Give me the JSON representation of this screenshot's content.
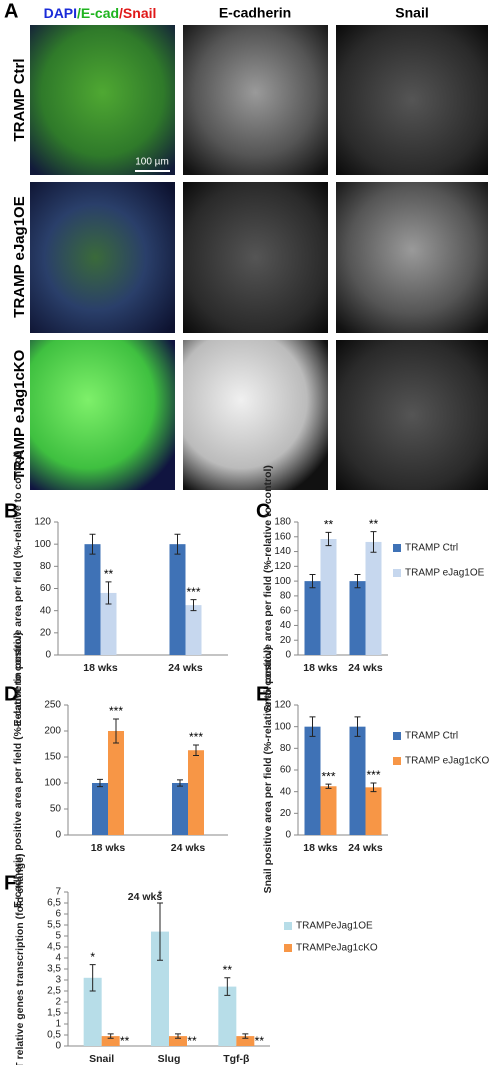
{
  "panel_a": {
    "label": "A",
    "merged_header_parts": [
      "DAPI",
      "/E-cad",
      "/Snail"
    ],
    "column_headers": [
      "E-cadherin",
      "Snail"
    ],
    "row_labels": [
      "TRAMP Ctrl",
      "TRAMP eJag1OE",
      "TRAMP eJag1cKO"
    ],
    "scale_bar": "100 µm"
  },
  "chart_data": [
    {
      "type": "bar",
      "label": "B",
      "y_label": "E-cadherin positive area per field (%-relative to control)",
      "categories": [
        "18 wks",
        "24 wks"
      ],
      "ylim": [
        0,
        120
      ],
      "yticks": [
        0,
        20,
        40,
        60,
        80,
        100,
        120
      ],
      "series": [
        {
          "color": "#3f72b6",
          "values": [
            100,
            100
          ],
          "errors": [
            9,
            9
          ]
        },
        {
          "color": "#c6d7ee",
          "values": [
            56,
            45
          ],
          "errors": [
            10,
            5
          ],
          "stars": [
            "**",
            "***"
          ]
        }
      ]
    },
    {
      "type": "bar",
      "label": "C",
      "y_label": "Snail positive area per field (%-relative to control)",
      "categories": [
        "18 wks",
        "24 wks"
      ],
      "ylim": [
        0,
        180
      ],
      "yticks": [
        0,
        20,
        40,
        60,
        80,
        100,
        120,
        140,
        160,
        180
      ],
      "legend": "right",
      "series": [
        {
          "name": "TRAMP Ctrl",
          "color": "#3f72b6",
          "values": [
            100,
            100
          ],
          "errors": [
            9,
            9
          ]
        },
        {
          "name": "TRAMP eJag1OE",
          "color": "#c6d7ee",
          "values": [
            157,
            153
          ],
          "errors": [
            9,
            14
          ],
          "stars": [
            "**",
            "**"
          ]
        }
      ]
    },
    {
      "type": "bar",
      "label": "D",
      "y_label": "E-cadherin positive area per field (%-relative to control)",
      "categories": [
        "18 wks",
        "24 wks"
      ],
      "ylim": [
        0,
        250
      ],
      "yticks": [
        0,
        50,
        100,
        150,
        200,
        250
      ],
      "series": [
        {
          "color": "#3f72b6",
          "values": [
            100,
            100
          ],
          "errors": [
            7,
            6
          ]
        },
        {
          "color": "#f79646",
          "values": [
            200,
            163
          ],
          "errors": [
            23,
            10
          ],
          "stars": [
            "***",
            "***"
          ]
        }
      ]
    },
    {
      "type": "bar",
      "label": "E",
      "y_label": "Snail positive area per field (%-relative to control)",
      "categories": [
        "18 wks",
        "24 wks"
      ],
      "ylim": [
        0,
        120
      ],
      "yticks": [
        0,
        20,
        40,
        60,
        80,
        100,
        120
      ],
      "legend": "right",
      "series": [
        {
          "name": "TRAMP Ctrl",
          "color": "#3f72b6",
          "values": [
            100,
            100
          ],
          "errors": [
            9,
            9
          ]
        },
        {
          "name": "TRAMP eJag1cKO",
          "color": "#f79646",
          "values": [
            45,
            44
          ],
          "errors": [
            2,
            4
          ],
          "stars": [
            "***",
            "***"
          ]
        }
      ]
    },
    {
      "type": "bar",
      "label": "F",
      "subtitle": "24 wks",
      "y_label": "EMT relative genes transcription (fold change)",
      "categories": [
        "Snail",
        "Slug",
        "Tgf-β"
      ],
      "ylim": [
        0,
        7
      ],
      "yticks": [
        0,
        {
          "value": 0.5,
          "label": "0,5"
        },
        1,
        {
          "value": 1.5,
          "label": "1,5"
        },
        2,
        {
          "value": 2.5,
          "label": "2,5"
        },
        3,
        {
          "value": 3.5,
          "label": "3,5"
        },
        4,
        {
          "value": 4.5,
          "label": "4,5"
        },
        5,
        {
          "value": 5.5,
          "label": "5,5"
        },
        6,
        {
          "value": 6.5,
          "label": "6,5"
        },
        7
      ],
      "legend": "right",
      "series": [
        {
          "name": "TRAMPeJag1OE",
          "color": "#b7dde8",
          "values": [
            3.1,
            5.2,
            2.7
          ],
          "errors": [
            0.6,
            1.3,
            0.4
          ],
          "stars": [
            "*",
            "*",
            "**"
          ]
        },
        {
          "name": "TRAMPeJag1cKO",
          "color": "#f79646",
          "values": [
            0.45,
            0.45,
            0.45
          ],
          "errors": [
            0.1,
            0.1,
            0.1
          ],
          "stars": [
            "**",
            "**",
            "**"
          ],
          "stars_position": "below"
        }
      ]
    }
  ]
}
